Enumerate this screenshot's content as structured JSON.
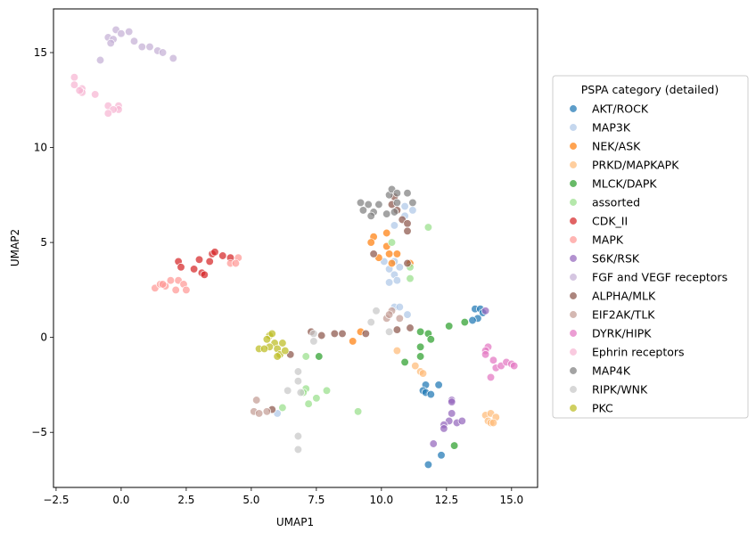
{
  "chart_data": {
    "type": "scatter",
    "title": "",
    "xlabel": "UMAP1",
    "ylabel": "UMAP2",
    "xlim": [
      -2.6,
      16.0
    ],
    "ylim": [
      -7.9,
      17.3
    ],
    "x_ticks": [
      -2.5,
      0.0,
      2.5,
      5.0,
      7.5,
      10.0,
      12.5,
      15.0
    ],
    "x_tick_labels": [
      "−2.5",
      "0.0",
      "2.5",
      "5.0",
      "7.5",
      "10.0",
      "12.5",
      "15.0"
    ],
    "y_ticks": [
      -5,
      0,
      5,
      10,
      15
    ],
    "y_tick_labels": [
      "−5",
      "0",
      "5",
      "10",
      "15"
    ],
    "grid": false,
    "legend": {
      "title": "PSPA category (detailed)",
      "placement": "center-right outside"
    },
    "series": [
      {
        "name": "AKT/ROCK",
        "color": "#1f77b4",
        "points": [
          [
            13.6,
            1.5
          ],
          [
            13.8,
            1.5
          ],
          [
            13.9,
            1.3
          ],
          [
            13.7,
            1.0
          ],
          [
            13.5,
            0.9
          ],
          [
            11.7,
            -2.5
          ],
          [
            11.6,
            -2.8
          ],
          [
            11.7,
            -2.9
          ],
          [
            11.9,
            -3.0
          ],
          [
            12.2,
            -2.5
          ],
          [
            11.8,
            -6.7
          ],
          [
            12.3,
            -6.2
          ]
        ]
      },
      {
        "name": "MAP3K",
        "color": "#aec7e8",
        "points": [
          [
            10.9,
            6.4
          ],
          [
            11.2,
            6.7
          ],
          [
            10.9,
            6.9
          ],
          [
            10.5,
            5.9
          ],
          [
            10.1,
            4.0
          ],
          [
            10.5,
            4.0
          ],
          [
            10.3,
            3.6
          ],
          [
            10.7,
            3.7
          ],
          [
            10.5,
            3.3
          ],
          [
            10.3,
            2.9
          ],
          [
            10.6,
            3.0
          ],
          [
            10.5,
            1.6
          ],
          [
            10.7,
            1.6
          ],
          [
            11.0,
            1.2
          ],
          [
            6.0,
            -4.0
          ]
        ]
      },
      {
        "name": "NEK/ASK",
        "color": "#ff7f0e",
        "points": [
          [
            9.7,
            5.3
          ],
          [
            10.2,
            5.5
          ],
          [
            10.2,
            4.8
          ],
          [
            9.6,
            5.0
          ],
          [
            10.3,
            4.4
          ],
          [
            10.6,
            4.4
          ],
          [
            9.9,
            4.2
          ],
          [
            10.4,
            3.9
          ],
          [
            11.1,
            3.9
          ],
          [
            9.2,
            0.3
          ],
          [
            8.9,
            -0.2
          ]
        ]
      },
      {
        "name": "PRKD/MAPKAPK",
        "color": "#ffbb78",
        "points": [
          [
            10.6,
            -0.7
          ],
          [
            11.3,
            -1.5
          ],
          [
            11.5,
            -1.8
          ],
          [
            11.6,
            -1.9
          ],
          [
            14.0,
            -4.1
          ],
          [
            14.2,
            -4.0
          ],
          [
            14.4,
            -4.2
          ],
          [
            14.1,
            -4.4
          ],
          [
            14.2,
            -4.5
          ],
          [
            14.3,
            -4.5
          ]
        ]
      },
      {
        "name": "MLCK/DAPK",
        "color": "#2ca02c",
        "points": [
          [
            12.6,
            0.6
          ],
          [
            13.2,
            0.8
          ],
          [
            11.5,
            0.3
          ],
          [
            11.8,
            0.2
          ],
          [
            11.9,
            -0.1
          ],
          [
            11.5,
            -0.5
          ],
          [
            10.9,
            -1.3
          ],
          [
            11.5,
            -1.0
          ],
          [
            7.6,
            -1.0
          ],
          [
            12.8,
            -5.7
          ]
        ]
      },
      {
        "name": "assorted",
        "color": "#98df8a",
        "points": [
          [
            11.8,
            5.8
          ],
          [
            11.1,
            3.7
          ],
          [
            11.1,
            3.1
          ],
          [
            10.4,
            5.0
          ],
          [
            7.1,
            -2.7
          ],
          [
            7.0,
            -2.9
          ],
          [
            7.2,
            -3.5
          ],
          [
            7.5,
            -3.2
          ],
          [
            7.9,
            -2.8
          ],
          [
            9.1,
            -3.9
          ],
          [
            6.2,
            -3.7
          ],
          [
            7.1,
            -1.0
          ]
        ]
      },
      {
        "name": "CDK_II",
        "color": "#d62728",
        "points": [
          [
            3.5,
            4.4
          ],
          [
            3.6,
            4.5
          ],
          [
            3.9,
            4.3
          ],
          [
            3.4,
            4.0
          ],
          [
            2.2,
            4.0
          ],
          [
            3.0,
            4.1
          ],
          [
            2.3,
            3.7
          ],
          [
            2.8,
            3.6
          ],
          [
            3.1,
            3.4
          ],
          [
            3.2,
            3.3
          ],
          [
            4.2,
            4.2
          ]
        ]
      },
      {
        "name": "MAPK",
        "color": "#ff9896",
        "points": [
          [
            4.5,
            4.2
          ],
          [
            4.2,
            3.9
          ],
          [
            4.4,
            3.9
          ],
          [
            1.3,
            2.6
          ],
          [
            1.5,
            2.8
          ],
          [
            1.7,
            2.7
          ],
          [
            1.9,
            3.0
          ],
          [
            2.1,
            2.5
          ],
          [
            2.2,
            3.0
          ],
          [
            2.4,
            2.8
          ],
          [
            2.5,
            2.5
          ],
          [
            1.6,
            2.8
          ]
        ]
      },
      {
        "name": "S6K/RSK",
        "color": "#9467bd",
        "points": [
          [
            14.0,
            1.4
          ],
          [
            12.7,
            -3.3
          ],
          [
            12.7,
            -3.4
          ],
          [
            12.7,
            -4.0
          ],
          [
            12.6,
            -4.4
          ],
          [
            12.4,
            -4.6
          ],
          [
            12.4,
            -4.8
          ],
          [
            12.9,
            -4.5
          ],
          [
            13.1,
            -4.4
          ],
          [
            12.0,
            -5.6
          ]
        ]
      },
      {
        "name": "FGF and VEGF receptors",
        "color": "#c5b0d5",
        "points": [
          [
            -0.2,
            16.2
          ],
          [
            0.0,
            16.0
          ],
          [
            0.3,
            16.1
          ],
          [
            -0.5,
            15.8
          ],
          [
            -0.3,
            15.7
          ],
          [
            -0.4,
            15.5
          ],
          [
            0.5,
            15.6
          ],
          [
            0.8,
            15.3
          ],
          [
            1.1,
            15.3
          ],
          [
            1.4,
            15.1
          ],
          [
            1.6,
            15.0
          ],
          [
            2.0,
            14.7
          ],
          [
            -0.8,
            14.6
          ]
        ]
      },
      {
        "name": "ALPHA/MLK",
        "color": "#8c564b",
        "points": [
          [
            10.4,
            7.0
          ],
          [
            10.5,
            7.4
          ],
          [
            10.6,
            6.7
          ],
          [
            10.8,
            6.2
          ],
          [
            11.0,
            6.0
          ],
          [
            11.0,
            5.6
          ],
          [
            9.7,
            4.4
          ],
          [
            11.0,
            3.9
          ],
          [
            10.6,
            0.4
          ],
          [
            11.1,
            0.5
          ],
          [
            7.3,
            0.3
          ],
          [
            7.7,
            0.1
          ],
          [
            8.2,
            0.2
          ],
          [
            8.5,
            0.2
          ],
          [
            9.4,
            0.2
          ],
          [
            6.5,
            -0.9
          ],
          [
            5.8,
            -3.8
          ]
        ]
      },
      {
        "name": "EIF2AK/TLK",
        "color": "#c49c94",
        "points": [
          [
            10.4,
            1.4
          ],
          [
            10.2,
            1.0
          ],
          [
            10.3,
            1.2
          ],
          [
            10.7,
            1.0
          ],
          [
            5.2,
            -3.3
          ],
          [
            5.1,
            -3.9
          ],
          [
            5.3,
            -4.0
          ],
          [
            5.6,
            -3.9
          ]
        ]
      },
      {
        "name": "DYRK/HIPK",
        "color": "#e377c2",
        "points": [
          [
            14.1,
            -0.5
          ],
          [
            14.0,
            -0.7
          ],
          [
            14.0,
            -0.9
          ],
          [
            14.3,
            -1.2
          ],
          [
            14.4,
            -1.6
          ],
          [
            14.6,
            -1.5
          ],
          [
            14.8,
            -1.3
          ],
          [
            15.0,
            -1.4
          ],
          [
            15.1,
            -1.5
          ],
          [
            14.2,
            -2.1
          ]
        ]
      },
      {
        "name": "Ephrin receptors",
        "color": "#f7b6d2",
        "points": [
          [
            -1.8,
            13.7
          ],
          [
            -1.8,
            13.3
          ],
          [
            -1.5,
            13.1
          ],
          [
            -1.5,
            12.9
          ],
          [
            -1.6,
            13.0
          ],
          [
            -1.0,
            12.8
          ],
          [
            -0.5,
            12.2
          ],
          [
            -0.1,
            12.2
          ],
          [
            -0.1,
            12.0
          ],
          [
            -0.3,
            12.0
          ],
          [
            -0.5,
            11.8
          ]
        ]
      },
      {
        "name": "MAP4K",
        "color": "#7f7f7f",
        "points": [
          [
            10.3,
            7.5
          ],
          [
            10.4,
            7.8
          ],
          [
            10.6,
            7.6
          ],
          [
            11.0,
            7.6
          ],
          [
            11.2,
            7.1
          ],
          [
            9.2,
            7.1
          ],
          [
            9.5,
            7.0
          ],
          [
            9.3,
            6.7
          ],
          [
            9.9,
            7.0
          ],
          [
            10.6,
            7.1
          ],
          [
            9.7,
            6.6
          ],
          [
            9.6,
            6.4
          ],
          [
            10.2,
            6.5
          ],
          [
            10.5,
            6.6
          ]
        ]
      },
      {
        "name": "RIPK/WNK",
        "color": "#c7c7c7",
        "points": [
          [
            9.8,
            1.4
          ],
          [
            9.6,
            0.8
          ],
          [
            10.3,
            0.3
          ],
          [
            7.4,
            0.2
          ],
          [
            7.4,
            -0.2
          ],
          [
            6.8,
            -1.8
          ],
          [
            6.8,
            -2.3
          ],
          [
            6.4,
            -2.8
          ],
          [
            6.9,
            -2.9
          ],
          [
            6.8,
            -5.2
          ],
          [
            6.8,
            -5.9
          ]
        ]
      },
      {
        "name": "PKC",
        "color": "#bcbd22",
        "points": [
          [
            5.7,
            0.1
          ],
          [
            5.8,
            0.2
          ],
          [
            5.6,
            -0.1
          ],
          [
            5.9,
            -0.3
          ],
          [
            6.2,
            -0.3
          ],
          [
            5.7,
            -0.5
          ],
          [
            5.3,
            -0.6
          ],
          [
            5.5,
            -0.6
          ],
          [
            6.0,
            -0.6
          ],
          [
            6.1,
            -0.9
          ],
          [
            6.0,
            -1.0
          ],
          [
            6.3,
            -0.7
          ]
        ]
      }
    ]
  }
}
